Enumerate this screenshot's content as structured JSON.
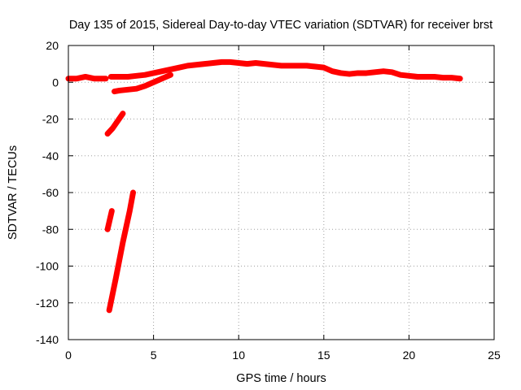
{
  "chart_data": {
    "type": "line",
    "title": "Day 135 of 2015, Sidereal Day-to-day VTEC variation (SDTVAR) for receiver brst",
    "xlabel": "GPS time / hours",
    "ylabel": "SDTVAR / TECUs",
    "xlim": [
      0,
      25
    ],
    "ylim": [
      -140,
      20
    ],
    "xticks": [
      0,
      5,
      10,
      15,
      20,
      25
    ],
    "yticks": [
      20,
      0,
      -20,
      -40,
      -60,
      -80,
      -100,
      -120,
      -140
    ],
    "grid": true,
    "legend": "none",
    "color": "#ff0000",
    "series": [
      {
        "x": [
          0,
          0.5,
          1.0,
          1.5,
          2.0,
          2.2
        ],
        "y": [
          2,
          2,
          3,
          2,
          2,
          2
        ]
      },
      {
        "x": [
          2.5,
          3.0,
          3.5,
          4.0,
          4.5,
          5.0,
          5.5,
          6.0,
          6.5,
          7.0,
          7.5,
          8.0,
          8.5,
          9.0,
          9.5,
          10.0,
          10.5,
          11.0,
          11.5,
          12.0,
          12.5,
          13.0,
          13.5,
          14.0,
          14.5,
          15.0,
          15.5,
          16.0,
          16.5,
          17.0,
          17.5,
          18.0,
          18.5,
          19.0,
          19.5,
          20.0,
          20.5,
          21.0,
          21.5,
          22.0,
          22.5,
          23.0
        ],
        "y": [
          3,
          3,
          3,
          3.5,
          4,
          5,
          6,
          7,
          8,
          9,
          9.5,
          10,
          10.5,
          11,
          11,
          10.5,
          10,
          10.5,
          10,
          9.5,
          9,
          9,
          9,
          9,
          8.5,
          8,
          6,
          5,
          4.5,
          5,
          5,
          5.5,
          6,
          5.5,
          4,
          3.5,
          3,
          3,
          3,
          2.5,
          2.5,
          2
        ]
      },
      {
        "x": [
          2.7,
          3.0,
          3.5,
          4.0,
          4.5,
          5.0,
          5.5,
          6.0
        ],
        "y": [
          -5,
          -4.5,
          -4,
          -3.5,
          -2,
          0,
          2,
          4
        ]
      },
      {
        "x": [
          2.3,
          2.6,
          2.9,
          3.2
        ],
        "y": [
          -28,
          -25,
          -21,
          -17
        ]
      },
      {
        "x": [
          2.3,
          2.4,
          2.5,
          2.55
        ],
        "y": [
          -80,
          -76,
          -72,
          -70
        ]
      },
      {
        "x": [
          2.4,
          2.8,
          3.2,
          3.6,
          3.8
        ],
        "y": [
          -124,
          -106,
          -87,
          -70,
          -60
        ]
      }
    ]
  }
}
